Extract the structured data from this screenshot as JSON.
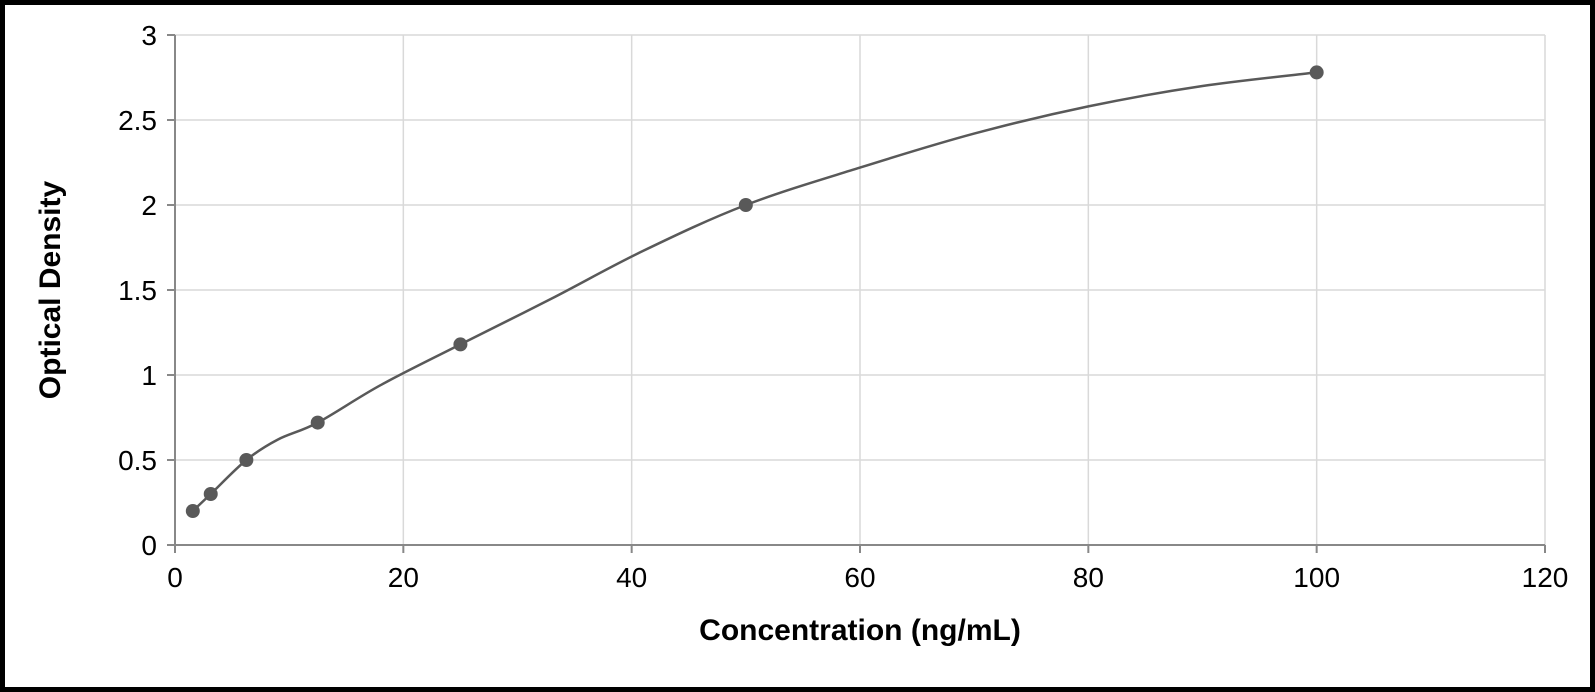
{
  "chart": {
    "type": "line",
    "xlabel": "Concentration (ng/mL)",
    "ylabel": "Optical Density",
    "label_fontsize": 30,
    "label_fontweight": 700,
    "tick_fontsize": 28,
    "background_color": "#ffffff",
    "grid_color": "#d9d9d9",
    "axis_color": "#888888",
    "line_color": "#595959",
    "marker_color": "#595959",
    "marker_radius": 7,
    "line_width": 2.5,
    "xlim": [
      0,
      120
    ],
    "ylim": [
      0,
      3
    ],
    "xtick_step": 20,
    "ytick_step": 0.5,
    "data_points": [
      {
        "x": 1.56,
        "y": 0.2
      },
      {
        "x": 3.13,
        "y": 0.3
      },
      {
        "x": 6.25,
        "y": 0.5
      },
      {
        "x": 12.5,
        "y": 0.72
      },
      {
        "x": 25,
        "y": 1.18
      },
      {
        "x": 50,
        "y": 2.0
      },
      {
        "x": 100,
        "y": 2.78
      }
    ],
    "curve_points": [
      {
        "x": 1.56,
        "y": 0.2
      },
      {
        "x": 3.13,
        "y": 0.3
      },
      {
        "x": 6.25,
        "y": 0.5
      },
      {
        "x": 9,
        "y": 0.62
      },
      {
        "x": 12.5,
        "y": 0.72
      },
      {
        "x": 18,
        "y": 0.94
      },
      {
        "x": 25,
        "y": 1.18
      },
      {
        "x": 33,
        "y": 1.45
      },
      {
        "x": 41,
        "y": 1.73
      },
      {
        "x": 50,
        "y": 2.0
      },
      {
        "x": 60,
        "y": 2.22
      },
      {
        "x": 70,
        "y": 2.42
      },
      {
        "x": 80,
        "y": 2.58
      },
      {
        "x": 90,
        "y": 2.7
      },
      {
        "x": 100,
        "y": 2.78
      }
    ]
  },
  "frame_border_color": "#000000",
  "frame_border_width": 5
}
